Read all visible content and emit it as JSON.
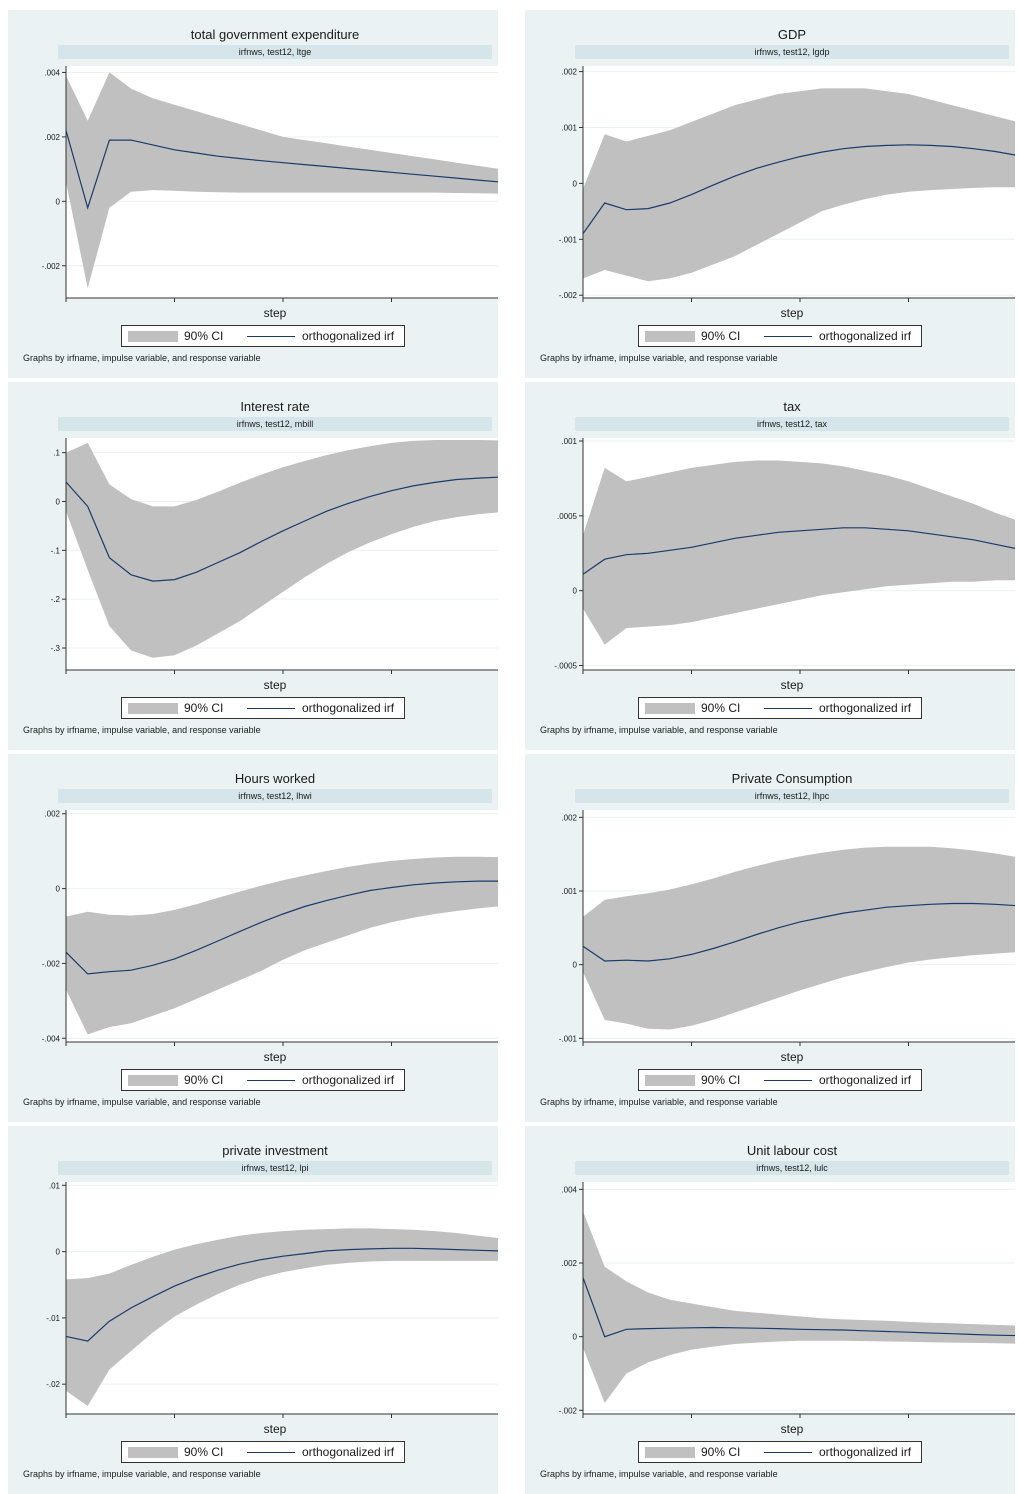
{
  "common": {
    "subtitle_prefix": "irfnws, test12, ",
    "xlabel": "step",
    "legend_ci": "90% CI",
    "legend_irf": "orthogonalized irf",
    "note": "Graphs by irfname, impulse variable, and response variable"
  },
  "colors": {
    "band": "#c0c0c0",
    "line": "#1a3a6a",
    "panel_bg": "#eaf2f3",
    "plot_bg": "#ffffff",
    "subtitle_bg": "#d6e5ea"
  },
  "chart_data": [
    {
      "type": "area",
      "title": "total government expenditure",
      "subtitle": "irfnws, test12, ltge",
      "xlabel": "step",
      "xlim": [
        0,
        20
      ],
      "xticks": [
        0,
        5,
        10,
        15,
        20
      ],
      "ylim": [
        -0.003,
        0.0042
      ],
      "yticks": [
        -0.002,
        0,
        0.002,
        0.004
      ],
      "ytick_labels": [
        "-.002",
        "0",
        ".002",
        ".004"
      ],
      "x": [
        0,
        1,
        2,
        3,
        4,
        5,
        6,
        7,
        8,
        9,
        10,
        11,
        12,
        13,
        14,
        15,
        16,
        17,
        18,
        19,
        20
      ],
      "series": [
        {
          "name": "orthogonalized irf",
          "values": [
            0.0022,
            -0.0002,
            0.0019,
            0.0019,
            0.00175,
            0.0016,
            0.0015,
            0.0014,
            0.00133,
            0.00126,
            0.0012,
            0.00114,
            0.00108,
            0.00102,
            0.00096,
            0.0009,
            0.00084,
            0.00078,
            0.00072,
            0.00066,
            0.0006
          ]
        },
        {
          "name": "90% CI lower",
          "values": [
            0.0006,
            -0.0027,
            -0.0002,
            0.0003,
            0.00035,
            0.00033,
            0.0003,
            0.00028,
            0.00027,
            0.00027,
            0.00027,
            0.00027,
            0.00027,
            0.00027,
            0.00027,
            0.00027,
            0.00027,
            0.00027,
            0.00026,
            0.00025,
            0.00024
          ]
        },
        {
          "name": "90% CI upper",
          "values": [
            0.0039,
            0.0025,
            0.004,
            0.0035,
            0.0032,
            0.003,
            0.0028,
            0.0026,
            0.0024,
            0.0022,
            0.002,
            0.0019,
            0.0018,
            0.0017,
            0.0016,
            0.0015,
            0.0014,
            0.0013,
            0.0012,
            0.0011,
            0.001
          ]
        }
      ]
    },
    {
      "type": "area",
      "title": "GDP",
      "subtitle": "irfnws, test12, lgdp",
      "xlabel": "step",
      "xlim": [
        0,
        20
      ],
      "xticks": [
        0,
        5,
        10,
        15,
        20
      ],
      "ylim": [
        -0.00205,
        0.0021
      ],
      "yticks": [
        -0.002,
        -0.001,
        0,
        0.001,
        0.002
      ],
      "ytick_labels": [
        "-.002",
        "-.001",
        "0",
        ".001",
        ".002"
      ],
      "x": [
        0,
        1,
        2,
        3,
        4,
        5,
        6,
        7,
        8,
        9,
        10,
        11,
        12,
        13,
        14,
        15,
        16,
        17,
        18,
        19,
        20
      ],
      "series": [
        {
          "name": "orthogonalized irf",
          "values": [
            -0.0009,
            -0.00035,
            -0.00047,
            -0.00045,
            -0.00035,
            -0.0002,
            -3e-05,
            0.00013,
            0.00027,
            0.00038,
            0.00048,
            0.00056,
            0.00062,
            0.00066,
            0.00068,
            0.00069,
            0.00068,
            0.00066,
            0.00062,
            0.00057,
            0.0005
          ]
        },
        {
          "name": "90% CI lower",
          "values": [
            -0.0017,
            -0.00155,
            -0.00165,
            -0.00175,
            -0.0017,
            -0.0016,
            -0.00145,
            -0.0013,
            -0.0011,
            -0.0009,
            -0.0007,
            -0.0005,
            -0.00038,
            -0.00028,
            -0.0002,
            -0.00015,
            -0.00012,
            -0.0001,
            -8e-05,
            -7e-05,
            -7e-05
          ]
        },
        {
          "name": "90% CI upper",
          "values": [
            -0.0001,
            0.00088,
            0.00075,
            0.00085,
            0.00095,
            0.0011,
            0.00125,
            0.0014,
            0.0015,
            0.0016,
            0.00165,
            0.0017,
            0.0017,
            0.0017,
            0.00165,
            0.0016,
            0.0015,
            0.0014,
            0.0013,
            0.0012,
            0.0011
          ]
        }
      ]
    },
    {
      "type": "area",
      "title": "Interest rate",
      "subtitle": "irfnws, test12, mbill",
      "xlabel": "step",
      "xlim": [
        0,
        20
      ],
      "xticks": [
        0,
        5,
        10,
        15,
        20
      ],
      "ylim": [
        -0.345,
        0.13
      ],
      "yticks": [
        -0.3,
        -0.2,
        -0.1,
        0,
        0.1
      ],
      "ytick_labels": [
        "-.3",
        "-.2",
        "-.1",
        "0",
        ".1"
      ],
      "x": [
        0,
        1,
        2,
        3,
        4,
        5,
        6,
        7,
        8,
        9,
        10,
        11,
        12,
        13,
        14,
        15,
        16,
        17,
        18,
        19,
        20
      ],
      "series": [
        {
          "name": "orthogonalized irf",
          "values": [
            0.04,
            -0.01,
            -0.115,
            -0.15,
            -0.163,
            -0.16,
            -0.145,
            -0.125,
            -0.105,
            -0.082,
            -0.06,
            -0.04,
            -0.02,
            -0.004,
            0.01,
            0.022,
            0.032,
            0.039,
            0.045,
            0.048,
            0.05
          ]
        },
        {
          "name": "90% CI lower",
          "values": [
            -0.02,
            -0.14,
            -0.255,
            -0.305,
            -0.32,
            -0.315,
            -0.295,
            -0.27,
            -0.245,
            -0.215,
            -0.185,
            -0.155,
            -0.128,
            -0.104,
            -0.084,
            -0.067,
            -0.052,
            -0.04,
            -0.032,
            -0.026,
            -0.022
          ]
        },
        {
          "name": "90% CI upper",
          "values": [
            0.1,
            0.12,
            0.035,
            0.005,
            -0.01,
            -0.01,
            0.003,
            0.02,
            0.038,
            0.055,
            0.07,
            0.083,
            0.095,
            0.105,
            0.113,
            0.12,
            0.124,
            0.126,
            0.126,
            0.126,
            0.125
          ]
        }
      ]
    },
    {
      "type": "area",
      "title": "tax",
      "subtitle": "irfnws, test12, tax",
      "xlabel": "step",
      "xlim": [
        0,
        20
      ],
      "xticks": [
        0,
        5,
        10,
        15,
        20
      ],
      "ylim": [
        -0.00053,
        0.00102
      ],
      "yticks": [
        -0.0005,
        0,
        0.0005,
        0.001
      ],
      "ytick_labels": [
        "-.0005",
        "0",
        ".0005",
        ".001"
      ],
      "x": [
        0,
        1,
        2,
        3,
        4,
        5,
        6,
        7,
        8,
        9,
        10,
        11,
        12,
        13,
        14,
        15,
        16,
        17,
        18,
        19,
        20
      ],
      "series": [
        {
          "name": "orthogonalized irf",
          "values": [
            0.00011,
            0.00021,
            0.00024,
            0.00025,
            0.00027,
            0.00029,
            0.00032,
            0.00035,
            0.00037,
            0.00039,
            0.0004,
            0.00041,
            0.00042,
            0.00042,
            0.00041,
            0.0004,
            0.00038,
            0.00036,
            0.00034,
            0.00031,
            0.00028
          ]
        },
        {
          "name": "90% CI lower",
          "values": [
            -0.00012,
            -0.00036,
            -0.00025,
            -0.00024,
            -0.00023,
            -0.00021,
            -0.00018,
            -0.00015,
            -0.00012,
            -9e-05,
            -6e-05,
            -3e-05,
            -1e-05,
            1e-05,
            3e-05,
            4e-05,
            5e-05,
            6e-05,
            6e-05,
            7e-05,
            7e-05
          ]
        },
        {
          "name": "90% CI upper",
          "values": [
            0.00037,
            0.00082,
            0.00073,
            0.00076,
            0.00079,
            0.00082,
            0.00084,
            0.00086,
            0.00087,
            0.00087,
            0.00086,
            0.00085,
            0.00083,
            0.0008,
            0.00077,
            0.00073,
            0.00068,
            0.00063,
            0.00058,
            0.00052,
            0.00047
          ]
        }
      ]
    },
    {
      "type": "area",
      "title": "Hours worked",
      "subtitle": "irfnws, test12, lhwi",
      "xlabel": "step",
      "xlim": [
        0,
        20
      ],
      "xticks": [
        0,
        5,
        10,
        15,
        20
      ],
      "ylim": [
        -0.0041,
        0.0021
      ],
      "yticks": [
        -0.004,
        -0.002,
        0,
        0.002
      ],
      "ytick_labels": [
        "-.004",
        "-.002",
        "0",
        ".002"
      ],
      "x": [
        0,
        1,
        2,
        3,
        4,
        5,
        6,
        7,
        8,
        9,
        10,
        11,
        12,
        13,
        14,
        15,
        16,
        17,
        18,
        19,
        20
      ],
      "series": [
        {
          "name": "orthogonalized irf",
          "values": [
            -0.0017,
            -0.00228,
            -0.00222,
            -0.00218,
            -0.00205,
            -0.00188,
            -0.00165,
            -0.0014,
            -0.00115,
            -0.0009,
            -0.00068,
            -0.00048,
            -0.00032,
            -0.00018,
            -5e-05,
            3e-05,
            0.0001,
            0.00015,
            0.00018,
            0.0002,
            0.0002
          ]
        },
        {
          "name": "90% CI lower",
          "values": [
            -0.0027,
            -0.0039,
            -0.0037,
            -0.0036,
            -0.0034,
            -0.0032,
            -0.00295,
            -0.0027,
            -0.00245,
            -0.0022,
            -0.0019,
            -0.00165,
            -0.00145,
            -0.00125,
            -0.00105,
            -0.0009,
            -0.00078,
            -0.00068,
            -0.0006,
            -0.00053,
            -0.00047
          ]
        },
        {
          "name": "90% CI upper",
          "values": [
            -0.00075,
            -0.00062,
            -0.0007,
            -0.00072,
            -0.00068,
            -0.00057,
            -0.00042,
            -0.00025,
            -8e-05,
            8e-05,
            0.00022,
            0.00035,
            0.00047,
            0.00058,
            0.00067,
            0.00074,
            0.00079,
            0.00083,
            0.00085,
            0.00085,
            0.00084
          ]
        }
      ]
    },
    {
      "type": "area",
      "title": "Private Consumption",
      "subtitle": "irfnws, test12, lhpc",
      "xlabel": "step",
      "xlim": [
        0,
        20
      ],
      "xticks": [
        0,
        5,
        10,
        15,
        20
      ],
      "ylim": [
        -0.00105,
        0.0021
      ],
      "yticks": [
        -0.001,
        0,
        0.001,
        0.002
      ],
      "ytick_labels": [
        "-.001",
        "0",
        ".001",
        ".002"
      ],
      "x": [
        0,
        1,
        2,
        3,
        4,
        5,
        6,
        7,
        8,
        9,
        10,
        11,
        12,
        13,
        14,
        15,
        16,
        17,
        18,
        19,
        20
      ],
      "series": [
        {
          "name": "orthogonalized irf",
          "values": [
            0.00025,
            5e-05,
            6e-05,
            5e-05,
            8e-05,
            0.00014,
            0.00022,
            0.00031,
            0.00041,
            0.0005,
            0.00058,
            0.00064,
            0.0007,
            0.00074,
            0.00078,
            0.0008,
            0.00082,
            0.00083,
            0.00083,
            0.00082,
            0.0008
          ]
        },
        {
          "name": "90% CI lower",
          "values": [
            -0.0001,
            -0.00075,
            -0.0008,
            -0.00087,
            -0.00088,
            -0.00083,
            -0.00075,
            -0.00065,
            -0.00055,
            -0.00045,
            -0.00035,
            -0.00026,
            -0.00017,
            -0.0001,
            -3e-05,
            3e-05,
            7e-05,
            0.0001,
            0.00013,
            0.00015,
            0.00017
          ]
        },
        {
          "name": "90% CI upper",
          "values": [
            0.00065,
            0.00088,
            0.00093,
            0.00097,
            0.00102,
            0.00109,
            0.00117,
            0.00126,
            0.00134,
            0.00141,
            0.00147,
            0.00152,
            0.00156,
            0.00159,
            0.0016,
            0.0016,
            0.0016,
            0.00158,
            0.00155,
            0.00151,
            0.00146
          ]
        }
      ]
    },
    {
      "type": "area",
      "title": "private investment",
      "subtitle": "irfnws, test12, lpi",
      "xlabel": "step",
      "xlim": [
        0,
        20
      ],
      "xticks": [
        0,
        5,
        10,
        15,
        20
      ],
      "ylim": [
        -0.0245,
        0.0105
      ],
      "yticks": [
        -0.02,
        -0.01,
        0,
        0.01
      ],
      "ytick_labels": [
        "-.02",
        "-.01",
        "0",
        ".01"
      ],
      "x": [
        0,
        1,
        2,
        3,
        4,
        5,
        6,
        7,
        8,
        9,
        10,
        11,
        12,
        13,
        14,
        15,
        16,
        17,
        18,
        19,
        20
      ],
      "series": [
        {
          "name": "orthogonalized irf",
          "values": [
            -0.0128,
            -0.0135,
            -0.0105,
            -0.0085,
            -0.0068,
            -0.0052,
            -0.0039,
            -0.0028,
            -0.0019,
            -0.0012,
            -0.0007,
            -0.0003,
            0.0001,
            0.0003,
            0.0004,
            0.0005,
            0.0005,
            0.0004,
            0.0003,
            0.0002,
            0.0001
          ]
        },
        {
          "name": "90% CI lower",
          "values": [
            -0.021,
            -0.0233,
            -0.0178,
            -0.015,
            -0.0122,
            -0.0098,
            -0.008,
            -0.0064,
            -0.005,
            -0.0039,
            -0.0031,
            -0.0025,
            -0.002,
            -0.0017,
            -0.0015,
            -0.0014,
            -0.0014,
            -0.0014,
            -0.0014,
            -0.0014,
            -0.0014
          ]
        },
        {
          "name": "90% CI upper",
          "values": [
            -0.0042,
            -0.004,
            -0.0033,
            -0.002,
            -0.0008,
            0.0003,
            0.0011,
            0.0018,
            0.0024,
            0.0028,
            0.0031,
            0.0033,
            0.0034,
            0.0035,
            0.0035,
            0.0034,
            0.0033,
            0.0031,
            0.0028,
            0.0024,
            0.002
          ]
        }
      ]
    },
    {
      "type": "area",
      "title": "Unit labour cost",
      "subtitle": "irfnws, test12, lulc",
      "xlabel": "step",
      "xlim": [
        0,
        20
      ],
      "xticks": [
        0,
        5,
        10,
        15,
        20
      ],
      "ylim": [
        -0.0021,
        0.0042
      ],
      "yticks": [
        -0.002,
        0,
        0.002,
        0.004
      ],
      "ytick_labels": [
        "-.002",
        "0",
        ".002",
        ".004"
      ],
      "x": [
        0,
        1,
        2,
        3,
        4,
        5,
        6,
        7,
        8,
        9,
        10,
        11,
        12,
        13,
        14,
        15,
        16,
        17,
        18,
        19,
        20
      ],
      "series": [
        {
          "name": "orthogonalized irf",
          "values": [
            0.0016,
            0.0,
            0.0002,
            0.00022,
            0.00023,
            0.00024,
            0.00025,
            0.00024,
            0.00023,
            0.00022,
            0.0002,
            0.00019,
            0.00018,
            0.00016,
            0.00014,
            0.00012,
            0.0001,
            8e-05,
            6e-05,
            4e-05,
            3e-05
          ]
        },
        {
          "name": "90% CI lower",
          "values": [
            -0.0003,
            -0.0018,
            -0.001,
            -0.0007,
            -0.0005,
            -0.00035,
            -0.00027,
            -0.0002,
            -0.00016,
            -0.00013,
            -0.00011,
            -0.00011,
            -0.00011,
            -0.00012,
            -0.00013,
            -0.00014,
            -0.00015,
            -0.00016,
            -0.00017,
            -0.00018,
            -0.00019
          ]
        },
        {
          "name": "90% CI upper",
          "values": [
            0.0034,
            0.0019,
            0.0015,
            0.0012,
            0.001,
            0.0009,
            0.0008,
            0.0007,
            0.00065,
            0.0006,
            0.00055,
            0.0005,
            0.00047,
            0.00045,
            0.00043,
            0.0004,
            0.00038,
            0.00036,
            0.00034,
            0.00032,
            0.0003
          ]
        }
      ]
    }
  ]
}
